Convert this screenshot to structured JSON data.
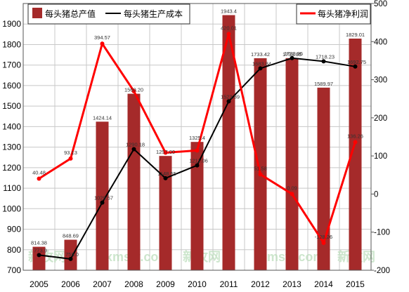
{
  "chart_data": {
    "type": "bar",
    "title": "",
    "categories": [
      "2005",
      "2006",
      "2007",
      "2008",
      "2009",
      "2010",
      "2011",
      "2012",
      "2013",
      "2014",
      "2015"
    ],
    "colors": {
      "bar": "#a52a2a",
      "cost_line": "#000000",
      "profit_line": "#ff0000",
      "grid": "#c8c8c8",
      "watermark": "#b8dcb8"
    },
    "y_left": {
      "ylim": [
        700,
        2000
      ],
      "ticks": [
        700,
        800,
        900,
        1000,
        1100,
        1200,
        1300,
        1400,
        1500,
        1600,
        1700,
        1800,
        1900
      ]
    },
    "y_right": {
      "ylim": [
        -200,
        500
      ],
      "ticks": [
        -200,
        -100,
        0,
        100,
        200,
        300,
        400,
        500
      ]
    },
    "series": [
      {
        "name": "每头猪总产值",
        "kind": "bar",
        "axis": "left",
        "values": [
          814.38,
          848.69,
          1424.14,
          1560.2,
          1257.0,
          1325.4,
          1943.4,
          1733.42,
          1733.95,
          1589.97,
          1829.01
        ],
        "labels": [
          "814.38",
          "848.69",
          "1424.14",
          "1560.20",
          "1257.00",
          "1325.4",
          "1943.4",
          "1733.42",
          "1733.95",
          "1589.97",
          "1829.01"
        ]
      },
      {
        "name": "每头猪生产成本",
        "kind": "line",
        "axis": "left",
        "values": [
          773.9,
          755.0,
          1029.57,
          1290.18,
          1148.55,
          1211.06,
          1523.39,
          1683.84,
          1733.95,
          1718.23,
          1692.75
        ],
        "labels": [
          "773.9",
          "755.0",
          "1029.57",
          "1290.18",
          "1148.55",
          "1211.06",
          "1523.39",
          "1683.84",
          "1733.95",
          "1718.23",
          "1692.75"
        ]
      },
      {
        "name": "每头猪净利润",
        "kind": "line",
        "axis": "right",
        "values": [
          40.48,
          93.13,
          394.57,
          270.02,
          108.45,
          114.34,
          420.01,
          51.58,
          0.09,
          -128.26,
          136.26
        ],
        "labels": [
          "40.48",
          "93.13",
          "394.57",
          "",
          "",
          "",
          "420.01",
          "51.58",
          "0.09",
          "-128.26",
          "136.26"
        ]
      }
    ],
    "watermarks": [
      "新牧网",
      "xmsw.com",
      "新牧网",
      "xmsw.com",
      "新牧网"
    ]
  }
}
